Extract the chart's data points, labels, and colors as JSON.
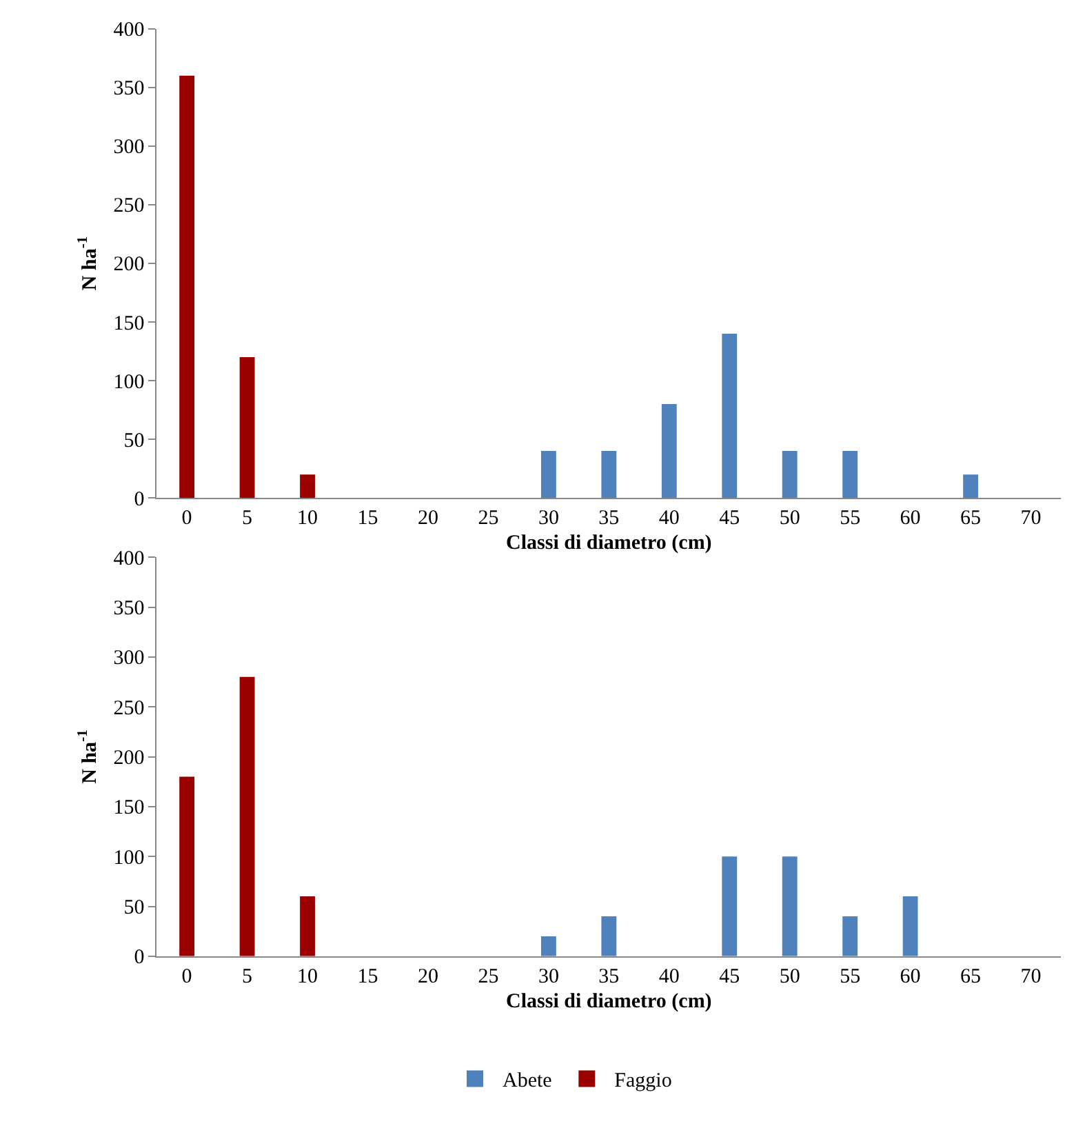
{
  "chart_data": [
    {
      "type": "bar",
      "categories": [
        "0",
        "5",
        "10",
        "15",
        "20",
        "25",
        "30",
        "35",
        "40",
        "45",
        "50",
        "55",
        "60",
        "65",
        "70"
      ],
      "xlabel": "Classi di diametro (cm)",
      "ylabel": "N ha$^{-1}$",
      "ylim": [
        0,
        400
      ],
      "yticks": [
        0,
        50,
        100,
        150,
        200,
        250,
        300,
        350,
        400
      ],
      "legend": "bottom",
      "series": [
        {
          "name": "Abete",
          "color": "#4f81bd",
          "values": [
            0,
            0,
            0,
            0,
            0,
            0,
            40,
            40,
            80,
            140,
            40,
            40,
            0,
            20,
            0
          ]
        },
        {
          "name": "Faggio",
          "color": "#9b0000",
          "values": [
            360,
            120,
            20,
            0,
            0,
            0,
            0,
            0,
            0,
            0,
            0,
            0,
            0,
            0,
            0
          ]
        }
      ]
    },
    {
      "type": "bar",
      "categories": [
        "0",
        "5",
        "10",
        "15",
        "20",
        "25",
        "30",
        "35",
        "40",
        "45",
        "50",
        "55",
        "60",
        "65",
        "70"
      ],
      "xlabel": "Classi di diametro (cm)",
      "ylabel": "N ha$^{-1}$",
      "ylim": [
        0,
        400
      ],
      "yticks": [
        0,
        50,
        100,
        150,
        200,
        250,
        300,
        350,
        400
      ],
      "legend": "bottom",
      "series": [
        {
          "name": "Abete",
          "color": "#4f81bd",
          "values": [
            0,
            0,
            0,
            0,
            0,
            0,
            20,
            40,
            0,
            100,
            100,
            40,
            60,
            0,
            0
          ]
        },
        {
          "name": "Faggio",
          "color": "#9b0000",
          "values": [
            180,
            280,
            60,
            0,
            0,
            0,
            0,
            0,
            0,
            0,
            0,
            0,
            0,
            0,
            0
          ]
        }
      ]
    }
  ]
}
